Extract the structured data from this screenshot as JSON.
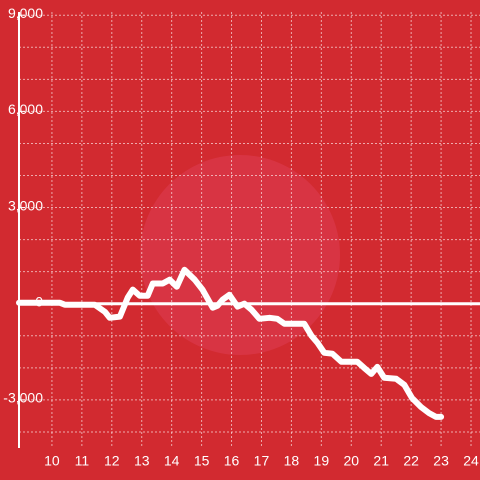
{
  "chart_data": {
    "type": "line",
    "x": [
      8.9,
      10.27,
      10.43,
      11.43,
      11.77,
      11.93,
      12.27,
      12.53,
      12.7,
      12.93,
      13.2,
      13.37,
      13.7,
      13.93,
      14.17,
      14.43,
      14.77,
      15.03,
      15.37,
      15.53,
      15.7,
      15.93,
      16.2,
      16.43,
      16.67,
      16.93,
      17.27,
      17.53,
      17.77,
      18.27,
      18.43,
      18.67,
      18.87,
      19.1,
      19.37,
      19.67,
      20.2,
      20.43,
      20.67,
      20.87,
      21.1,
      21.5,
      21.77,
      22.03,
      22.33,
      22.6,
      22.83,
      23.0
    ],
    "values": [
      30,
      30,
      -30,
      -30,
      -250,
      -440,
      -400,
      190,
      440,
      250,
      250,
      630,
      630,
      750,
      530,
      1060,
      750,
      440,
      -125,
      -60,
      125,
      280,
      -90,
      0,
      -190,
      -470,
      -440,
      -470,
      -625,
      -625,
      -625,
      -1000,
      -1220,
      -1530,
      -1560,
      -1810,
      -1810,
      -2000,
      -2190,
      -1970,
      -2310,
      -2340,
      -2530,
      -2940,
      -3220,
      -3410,
      -3530,
      -3530
    ],
    "color": "#ffffff",
    "xlim": [
      8.9,
      24.3
    ],
    "ylim": [
      -4500,
      9100
    ],
    "xticks": [
      10,
      11,
      12,
      13,
      14,
      15,
      16,
      17,
      18,
      19,
      20,
      21,
      22,
      23,
      24
    ],
    "yticks": [
      {
        "value": -3000,
        "label": "-3,000"
      },
      0,
      {
        "value": 3000,
        "label": "3,000"
      },
      {
        "value": 6000,
        "label": "6,000"
      },
      {
        "value": 9000,
        "label": "9,000"
      }
    ],
    "yminorticks": [
      -4000,
      -3000,
      -2000,
      -1000,
      1000,
      2000,
      3000,
      4000,
      5000,
      6000,
      7000,
      8000,
      9000
    ],
    "grid": true
  }
}
